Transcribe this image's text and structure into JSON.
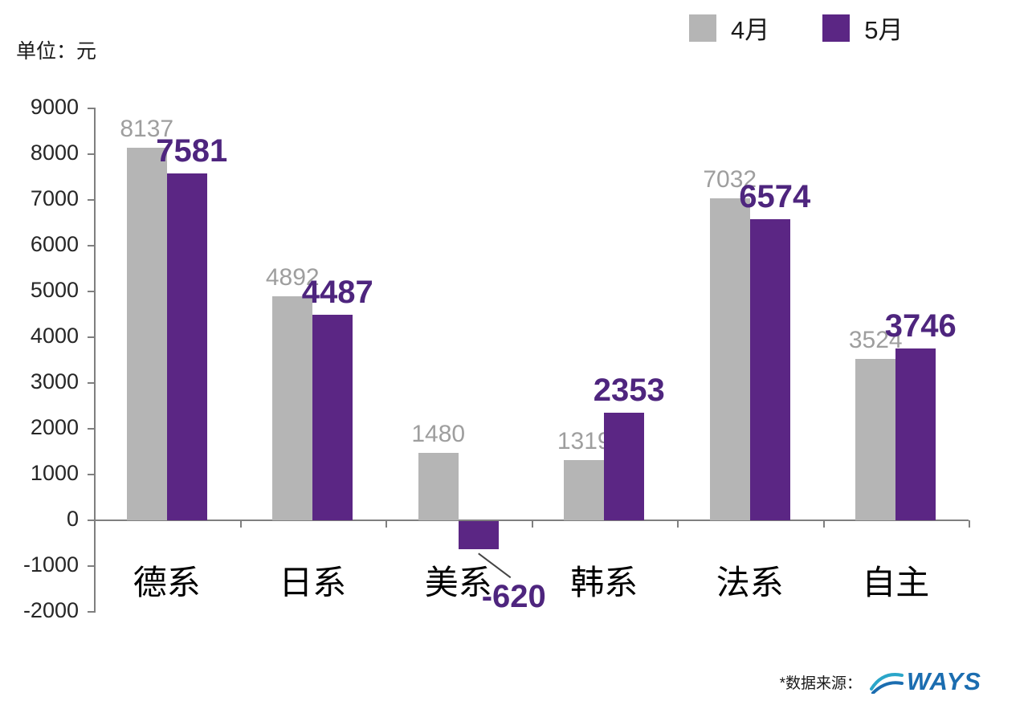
{
  "unit_label": "单位：元",
  "legend": [
    {
      "key": "april",
      "label": "4月",
      "color": "#b5b5b5"
    },
    {
      "key": "may",
      "label": "5月",
      "color": "#5b2684"
    }
  ],
  "source_note": "*数据来源：",
  "logo_text": "WAYS",
  "colors": {
    "gray_bar": "#b5b5b5",
    "gray_label": "#9e9e9e",
    "purple_bar": "#5b2684",
    "purple_label": "#4e257e",
    "axis": "#7f7f7f",
    "logo_blue": "#1b6db0"
  },
  "chart_data": {
    "type": "bar",
    "categories": [
      "德系",
      "日系",
      "美系",
      "韩系",
      "法系",
      "自主"
    ],
    "series": [
      {
        "key": "april",
        "name": "4月",
        "color": "#b5b5b5",
        "label_color": "#9e9e9e",
        "values": [
          8137,
          4892,
          1480,
          1319,
          7032,
          3524
        ]
      },
      {
        "key": "may",
        "name": "5月",
        "color": "#5b2684",
        "label_color": "#4e257e",
        "values": [
          7581,
          4487,
          -620,
          2353,
          6574,
          3746
        ]
      }
    ],
    "title": "",
    "xlabel": "",
    "ylabel": "单位：元",
    "ylim": [
      -2000,
      9000
    ],
    "ytick_step": 1000,
    "grid": false,
    "legend_position": "top-right"
  }
}
